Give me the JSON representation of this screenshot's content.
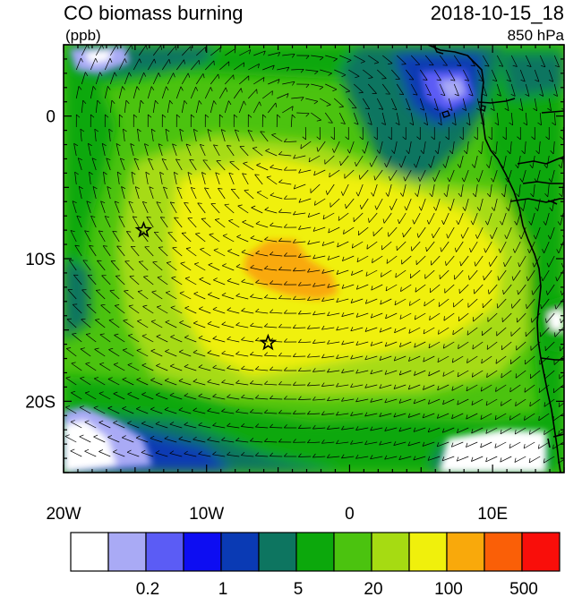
{
  "header": {
    "title": "CO biomass burning",
    "units": "(ppb)",
    "datetime": "2018-10-15_18",
    "level": "850 hPa"
  },
  "map": {
    "lon_range": [
      -20,
      15
    ],
    "lat_range": [
      -25,
      5
    ],
    "x_ticks": [
      {
        "lon": -20,
        "label": "20W"
      },
      {
        "lon": -10,
        "label": "10W"
      },
      {
        "lon": 0,
        "label": "0"
      },
      {
        "lon": 10,
        "label": "10E"
      }
    ],
    "y_ticks": [
      {
        "lat": 0,
        "label": "0"
      },
      {
        "lat": -10,
        "label": "10S"
      },
      {
        "lat": -20,
        "label": "20S"
      }
    ],
    "stations": [
      {
        "lon": -14.4,
        "lat": -8.0
      },
      {
        "lon": -5.7,
        "lat": -15.9
      }
    ]
  },
  "colorbar": {
    "colors": [
      "#ffffff",
      "#a9aaf5",
      "#5b5cf5",
      "#0d0df2",
      "#0a3ab4",
      "#0d7560",
      "#0ca80c",
      "#4bc30f",
      "#a6db12",
      "#f0f00c",
      "#f9a90b",
      "#fa5f07",
      "#f90e0a"
    ],
    "tick_labels": [
      {
        "boundary": 2,
        "label": "0.2"
      },
      {
        "boundary": 4,
        "label": "1"
      },
      {
        "boundary": 6,
        "label": "5"
      },
      {
        "boundary": 8,
        "label": "20"
      },
      {
        "boundary": 10,
        "label": "100"
      },
      {
        "boundary": 12,
        "label": "500"
      }
    ]
  }
}
